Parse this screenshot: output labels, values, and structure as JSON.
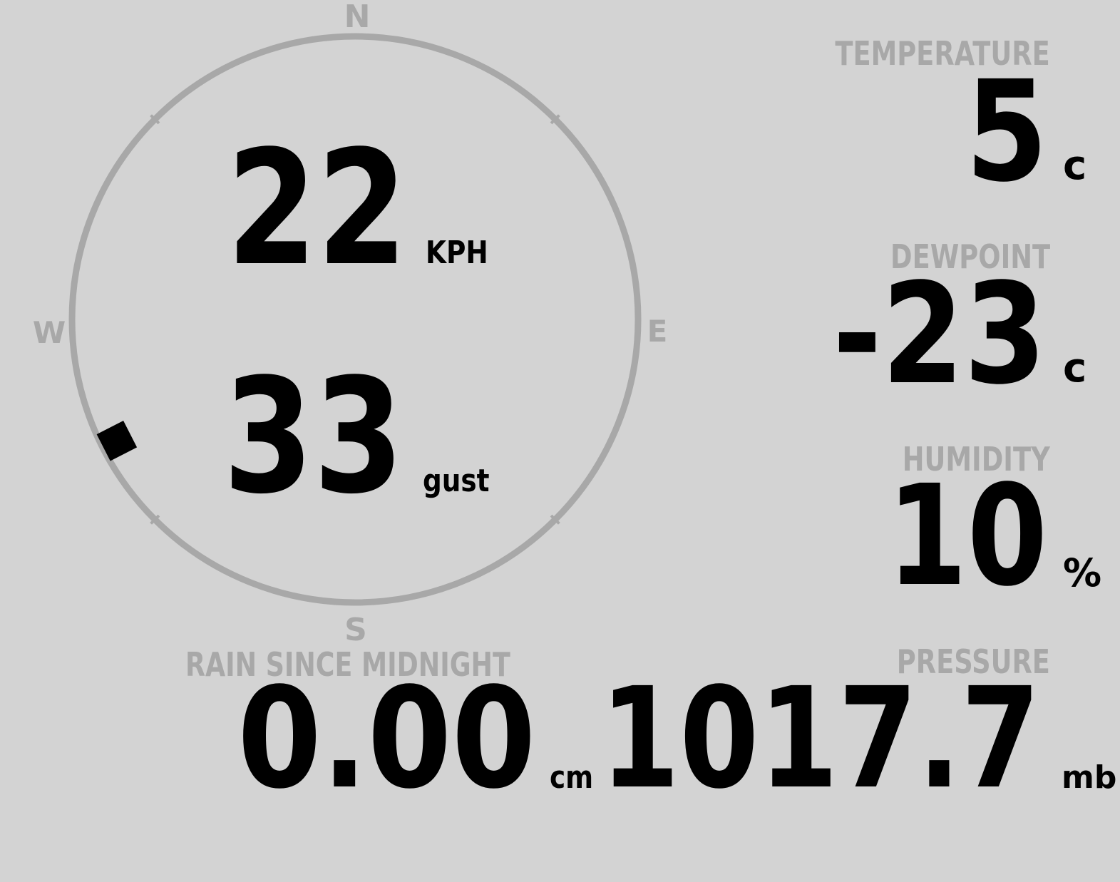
{
  "colors": {
    "background": "#d3d3d3",
    "label": "#a8a8a8",
    "value": "#000000"
  },
  "compass": {
    "north": "N",
    "south": "S",
    "east": "E",
    "west": "W",
    "wind_direction_deg": 243
  },
  "wind": {
    "speed": "22",
    "speed_unit": "KPH",
    "gust": "33",
    "gust_unit": "gust"
  },
  "temperature": {
    "label": "TEMPERATURE",
    "value": "5",
    "unit": "c"
  },
  "dewpoint": {
    "label": "DEWPOINT",
    "value": "-23",
    "unit": "c"
  },
  "humidity": {
    "label": "HUMIDITY",
    "value": "10",
    "unit": "%"
  },
  "pressure": {
    "label": "PRESSURE",
    "value": "1017.7",
    "unit": "mb"
  },
  "rain": {
    "label": "RAIN SINCE MIDNIGHT",
    "value": "0.00",
    "unit": "cm"
  }
}
